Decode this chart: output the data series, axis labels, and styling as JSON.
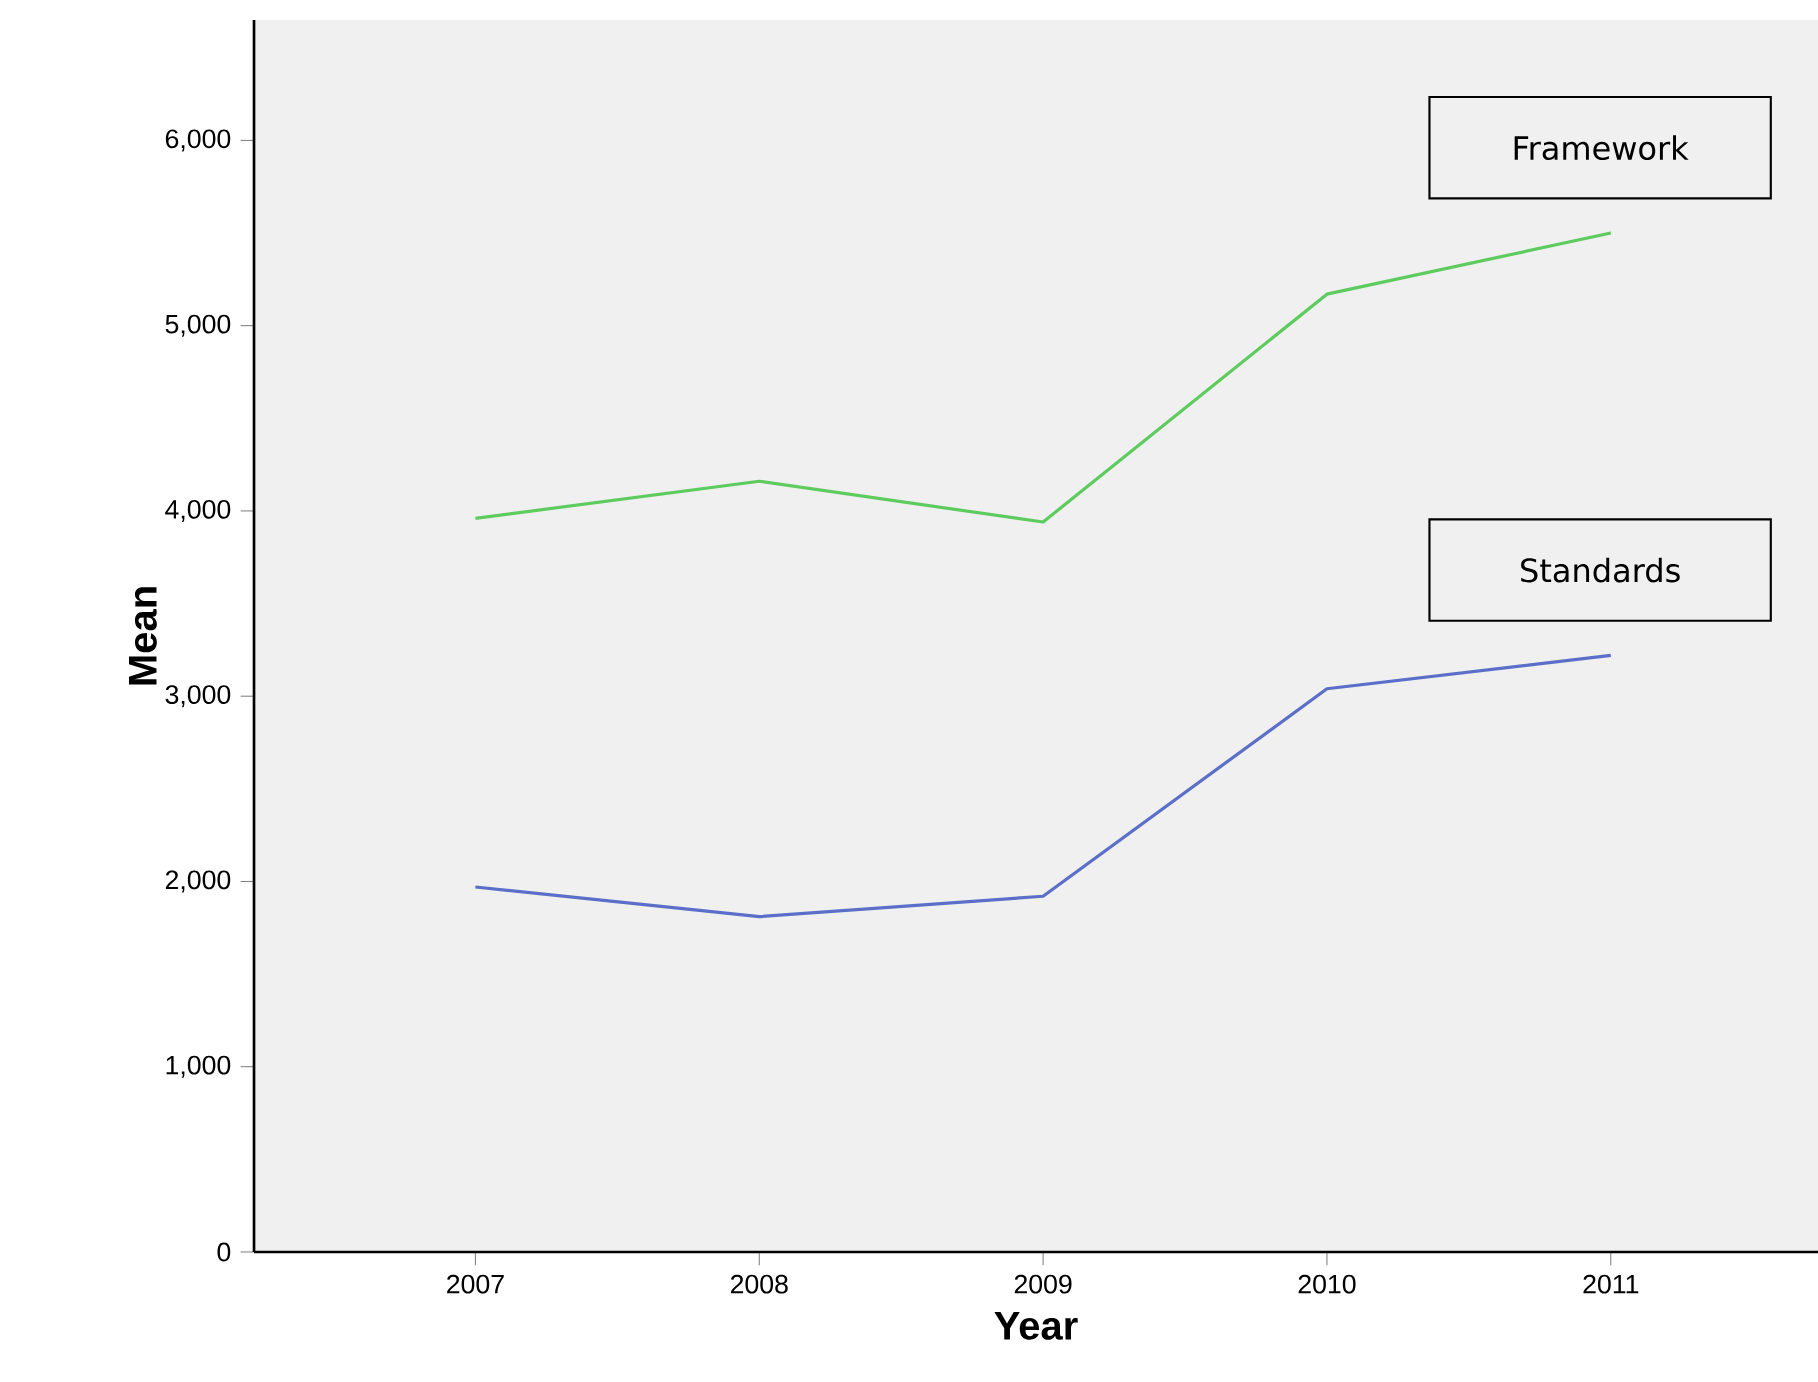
{
  "chart_data": {
    "type": "line",
    "xlabel": "Year",
    "ylabel": "Mean",
    "x": [
      2007,
      2008,
      2009,
      2010,
      2011
    ],
    "series": [
      {
        "name": "Framework",
        "color": "#5ecb5e",
        "values": [
          3960,
          4160,
          3940,
          5170,
          5500
        ]
      },
      {
        "name": "Standards",
        "color": "#5b6fc8",
        "values": [
          1970,
          1810,
          1920,
          3040,
          3220
        ]
      }
    ],
    "xlim": [
      2006.22,
      2011.73
    ],
    "ylim": [
      0,
      6650
    ],
    "xticks": [
      2007,
      2008,
      2009,
      2010,
      2011
    ],
    "yticks": [
      0,
      {
        "value": 1000,
        "label": "1,000"
      },
      {
        "value": 2000,
        "label": "2,000"
      },
      {
        "value": 3000,
        "label": "3,000"
      },
      {
        "value": 4000,
        "label": "4,000"
      },
      {
        "value": 5000,
        "label": "5,000"
      },
      {
        "value": 6000,
        "label": "6,000"
      }
    ],
    "grid": false,
    "legend": false,
    "marker": "none",
    "line_style": "solid"
  }
}
